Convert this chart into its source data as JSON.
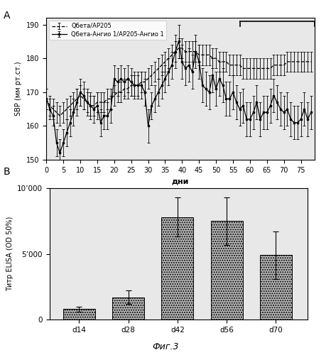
{
  "panel_A": {
    "label": "A",
    "line1_label": "Qбета/AP205",
    "line2_label": "Qбета-Ангио 1/AP205-Ангио 1",
    "xlabel": "дни",
    "ylabel": "SBP (мм рт.ст.)",
    "ylim": [
      150,
      192
    ],
    "yticks": [
      150,
      160,
      170,
      180,
      190
    ],
    "xlim": [
      0,
      79
    ],
    "xticks": [
      0,
      5,
      10,
      15,
      20,
      25,
      30,
      35,
      40,
      45,
      50,
      55,
      60,
      65,
      70,
      75
    ],
    "line1_x": [
      0,
      1,
      2,
      3,
      4,
      5,
      6,
      7,
      8,
      9,
      10,
      11,
      12,
      13,
      14,
      15,
      16,
      17,
      18,
      19,
      20,
      21,
      22,
      23,
      24,
      25,
      26,
      27,
      28,
      29,
      30,
      31,
      32,
      33,
      34,
      35,
      36,
      37,
      38,
      39,
      40,
      41,
      42,
      43,
      44,
      45,
      46,
      47,
      48,
      49,
      50,
      51,
      52,
      53,
      54,
      55,
      56,
      57,
      58,
      59,
      60,
      61,
      62,
      63,
      64,
      65,
      66,
      67,
      68,
      69,
      70,
      71,
      72,
      73,
      74,
      75,
      76,
      77,
      78
    ],
    "line1_y": [
      168,
      166,
      165,
      164,
      163,
      164,
      165,
      166,
      167,
      168,
      169,
      168,
      167,
      166,
      166,
      167,
      167,
      167,
      168,
      168,
      169,
      170,
      170,
      171,
      171,
      172,
      172,
      172,
      173,
      173,
      174,
      175,
      176,
      177,
      178,
      179,
      180,
      181,
      182,
      183,
      183,
      182,
      182,
      182,
      182,
      181,
      181,
      181,
      181,
      180,
      180,
      179,
      179,
      179,
      178,
      178,
      178,
      178,
      177,
      177,
      177,
      177,
      177,
      177,
      177,
      177,
      177,
      178,
      178,
      178,
      178,
      179,
      179,
      179,
      179,
      179,
      179,
      179,
      179
    ],
    "line1_err": [
      3,
      3,
      3,
      3,
      3,
      3,
      3,
      3,
      3,
      3,
      3,
      3,
      3,
      3,
      3,
      3,
      3,
      3,
      3,
      3,
      3,
      3,
      3,
      3,
      3,
      3,
      3,
      3,
      3,
      3,
      3,
      3,
      3,
      3,
      3,
      3,
      3,
      3,
      3,
      3,
      3,
      3,
      3,
      3,
      3,
      3,
      3,
      3,
      3,
      3,
      3,
      3,
      3,
      3,
      3,
      3,
      3,
      3,
      3,
      3,
      3,
      3,
      3,
      3,
      3,
      3,
      3,
      3,
      3,
      3,
      3,
      3,
      3,
      3,
      3,
      3,
      3,
      3,
      3
    ],
    "line2_x": [
      0,
      1,
      2,
      3,
      4,
      5,
      6,
      7,
      8,
      9,
      10,
      11,
      12,
      13,
      14,
      15,
      16,
      17,
      18,
      19,
      20,
      21,
      22,
      23,
      24,
      25,
      26,
      27,
      28,
      29,
      30,
      31,
      32,
      33,
      34,
      35,
      36,
      37,
      38,
      39,
      40,
      41,
      42,
      43,
      44,
      45,
      46,
      47,
      48,
      49,
      50,
      51,
      52,
      53,
      54,
      55,
      56,
      57,
      58,
      59,
      60,
      61,
      62,
      63,
      64,
      65,
      66,
      67,
      68,
      69,
      70,
      71,
      72,
      73,
      74,
      75,
      76,
      77,
      78
    ],
    "line2_y": [
      168,
      165,
      163,
      155,
      152,
      155,
      158,
      161,
      164,
      167,
      170,
      169,
      167,
      166,
      165,
      166,
      161,
      163,
      163,
      165,
      174,
      173,
      174,
      173,
      174,
      173,
      172,
      172,
      172,
      170,
      160,
      166,
      168,
      170,
      172,
      174,
      176,
      178,
      182,
      185,
      179,
      177,
      178,
      176,
      182,
      179,
      172,
      171,
      170,
      175,
      171,
      174,
      172,
      168,
      168,
      170,
      167,
      165,
      166,
      162,
      162,
      164,
      167,
      162,
      164,
      164,
      166,
      169,
      167,
      165,
      164,
      165,
      162,
      161,
      161,
      162,
      165,
      162,
      164
    ],
    "line2_err": [
      3,
      3,
      3,
      4,
      4,
      4,
      4,
      4,
      4,
      4,
      4,
      4,
      4,
      4,
      4,
      4,
      4,
      4,
      4,
      4,
      4,
      4,
      4,
      4,
      4,
      4,
      4,
      4,
      4,
      4,
      5,
      4,
      4,
      4,
      4,
      4,
      4,
      4,
      5,
      5,
      5,
      5,
      5,
      5,
      5,
      5,
      5,
      5,
      5,
      5,
      5,
      5,
      5,
      5,
      5,
      5,
      5,
      5,
      5,
      5,
      5,
      5,
      5,
      5,
      5,
      5,
      5,
      5,
      5,
      5,
      5,
      5,
      5,
      5,
      5,
      5,
      5,
      5,
      5
    ],
    "bracket_x1": 57,
    "bracket_x2": 79,
    "bracket_y": 191
  },
  "panel_B": {
    "label": "B",
    "categories": [
      "d14",
      "d28",
      "d42",
      "d56",
      "d70"
    ],
    "values": [
      800,
      1700,
      7800,
      7500,
      4900
    ],
    "errors": [
      200,
      500,
      1500,
      1800,
      1800
    ],
    "ylabel": "Титр ELISA (OD 50%)",
    "xlabel": "",
    "ylim": [
      0,
      10000
    ],
    "yticks": [
      0,
      5000,
      10000
    ],
    "ytick_labels": [
      "0",
      "5’000",
      "10’000"
    ],
    "bar_color": "#b8b8b8",
    "bar_hatch": ".....",
    "figure_label": "Фиг.3"
  },
  "background_color": "#f0f0f0",
  "figure_label": "Фиг.3"
}
